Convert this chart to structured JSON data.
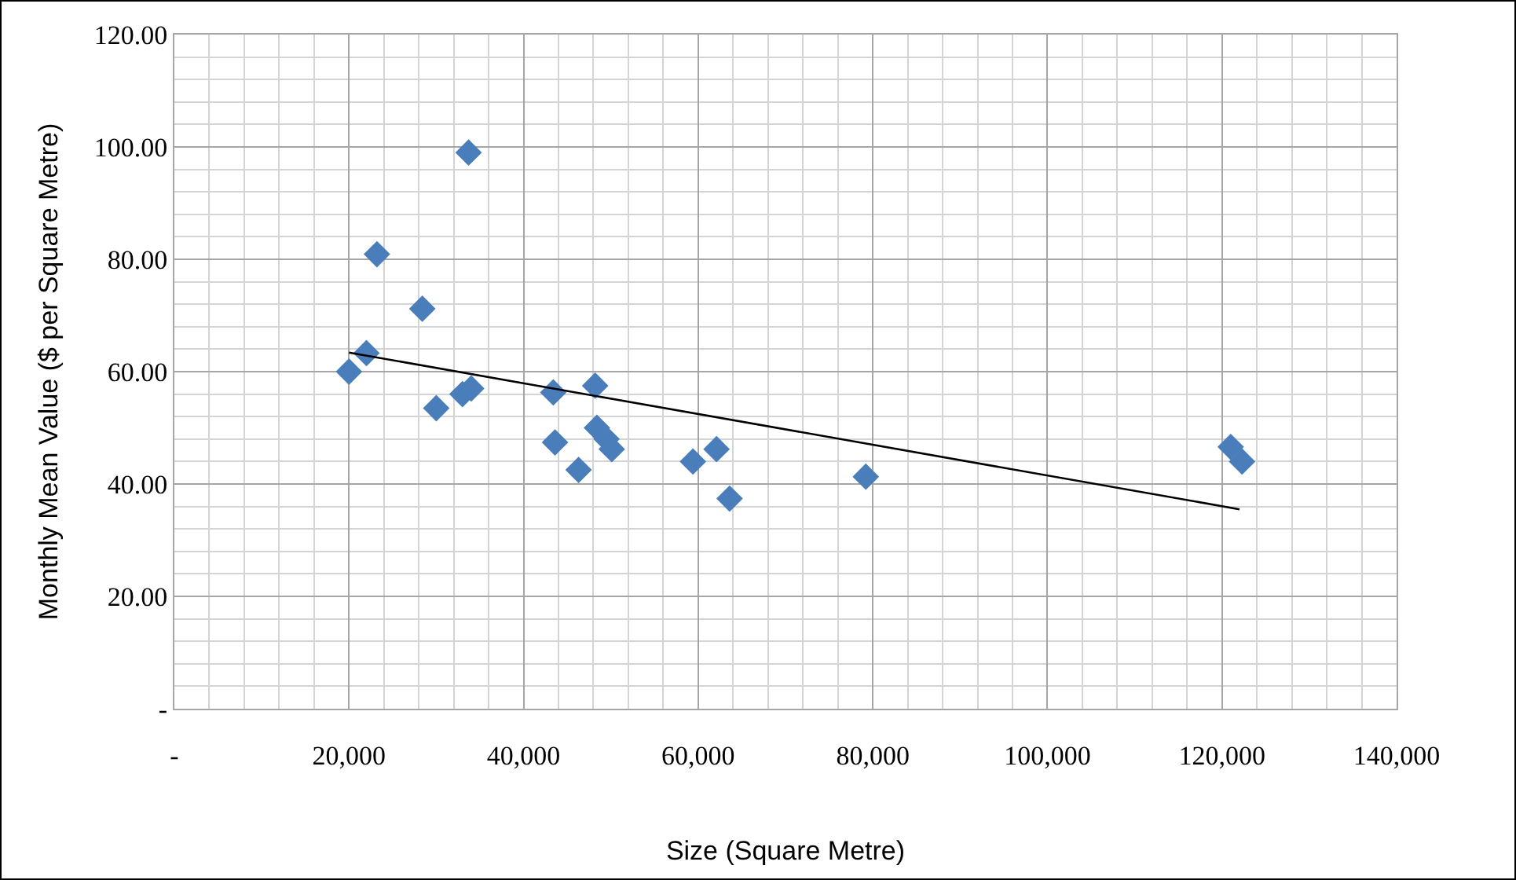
{
  "chart_data": {
    "type": "scatter",
    "xlabel": "Size (Square Metre)",
    "ylabel": "Monthly Mean Value ($ per Square Metre)",
    "xlim": [
      0,
      140000
    ],
    "xticks": [
      {
        "value": 0,
        "label": "-"
      },
      {
        "value": 20000,
        "label": "20,000"
      },
      {
        "value": 40000,
        "label": "40,000"
      },
      {
        "value": 60000,
        "label": "60,000"
      },
      {
        "value": 80000,
        "label": "80,000"
      },
      {
        "value": 100000,
        "label": "100,000"
      },
      {
        "value": 120000,
        "label": "120,000"
      },
      {
        "value": 140000,
        "label": "140,000"
      }
    ],
    "ylim": [
      0,
      120
    ],
    "yticks": [
      {
        "value": 0,
        "label": "-"
      },
      {
        "value": 20,
        "label": "20.00"
      },
      {
        "value": 40,
        "label": "40.00"
      },
      {
        "value": 60,
        "label": "60.00"
      },
      {
        "value": 80,
        "label": "80.00"
      },
      {
        "value": 100,
        "label": "100.00"
      },
      {
        "value": 120,
        "label": "120.00"
      }
    ],
    "grid": true,
    "series": [
      {
        "marker": "diamond",
        "color": "#4a7ebb",
        "x": [
          20000,
          22000,
          23200,
          28400,
          30000,
          33000,
          34000,
          33700,
          43400,
          43600,
          46300,
          48200,
          48400,
          49500,
          50100,
          59400,
          62100,
          63600,
          79200,
          121000,
          122300
        ],
        "values": [
          60,
          63.3,
          80.9,
          71.2,
          53.5,
          56,
          57,
          99,
          56.3,
          47.4,
          42.5,
          57.5,
          50,
          48,
          46.2,
          44,
          46.2,
          37.4,
          41.3,
          46.6,
          44
        ]
      },
      {
        "type": "line",
        "color": "#000000",
        "x": [
          20000,
          122000
        ],
        "values": [
          63.4,
          35.5
        ]
      }
    ]
  }
}
